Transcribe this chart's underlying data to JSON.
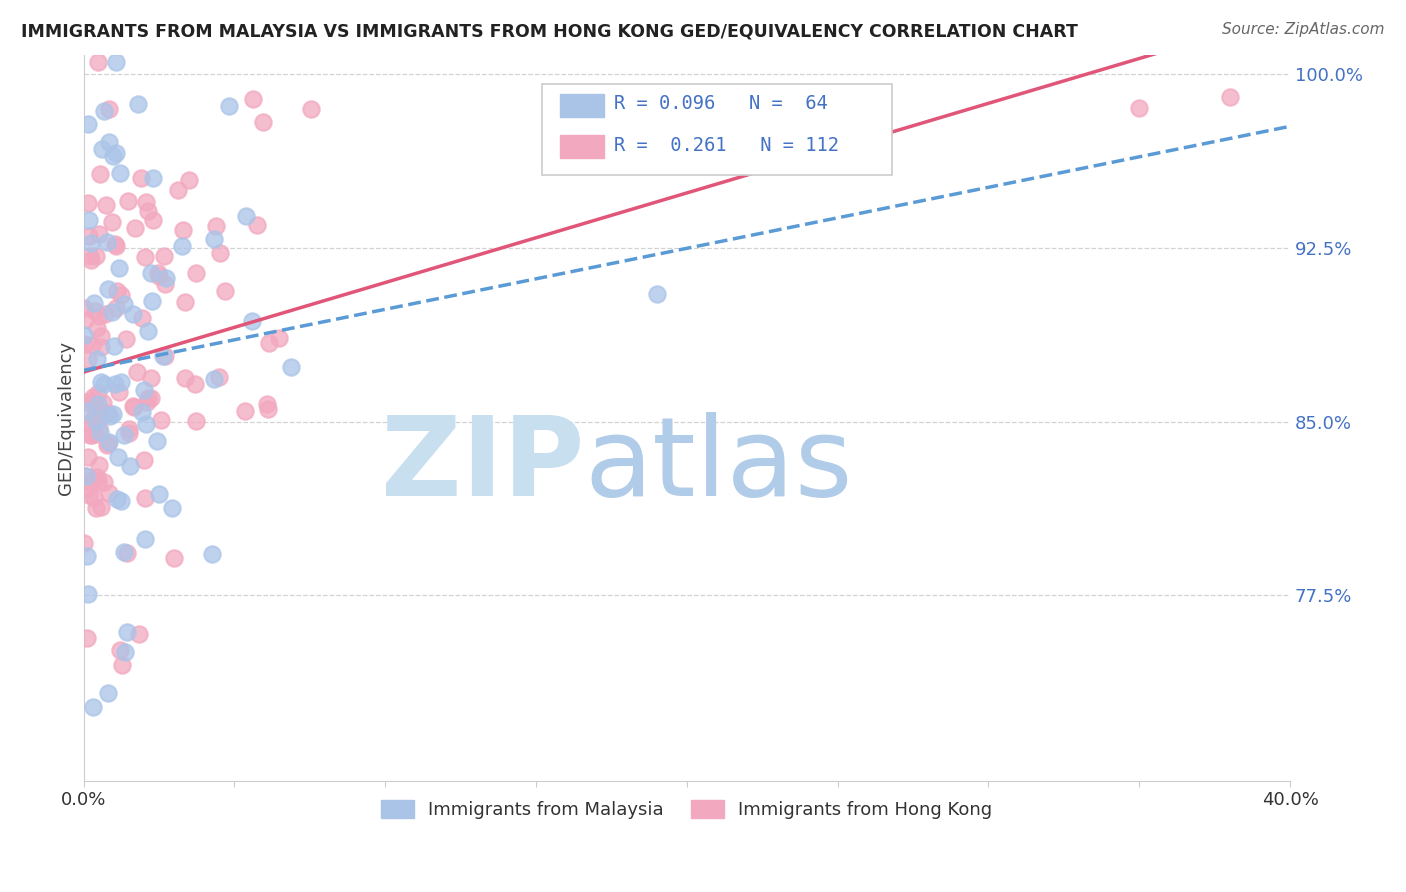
{
  "title": "IMMIGRANTS FROM MALAYSIA VS IMMIGRANTS FROM HONG KONG GED/EQUIVALENCY CORRELATION CHART",
  "source": "Source: ZipAtlas.com",
  "xlabel_malaysia": "Immigrants from Malaysia",
  "xlabel_hongkong": "Immigrants from Hong Kong",
  "ylabel": "GED/Equivalency",
  "xlim": [
    0.0,
    0.4
  ],
  "ylim": [
    0.695,
    1.008
  ],
  "yticks": [
    0.775,
    0.85,
    0.925,
    1.0
  ],
  "yticklabels": [
    "77.5%",
    "85.0%",
    "92.5%",
    "100.0%"
  ],
  "malaysia_R": 0.096,
  "malaysia_N": 64,
  "hongkong_R": 0.261,
  "hongkong_N": 112,
  "malaysia_color": "#aac4e8",
  "hongkong_color": "#f2a8bf",
  "malaysia_line_color": "#5b9bd5",
  "hongkong_line_color": "#e05578",
  "tick_color": "#4472c4",
  "grid_color": "#c8c8c8",
  "watermark_zip_color": "#c8dff0",
  "watermark_atlas_color": "#b0cce8",
  "legend_box_color": "#cccccc",
  "title_color": "#222222",
  "source_color": "#666666"
}
